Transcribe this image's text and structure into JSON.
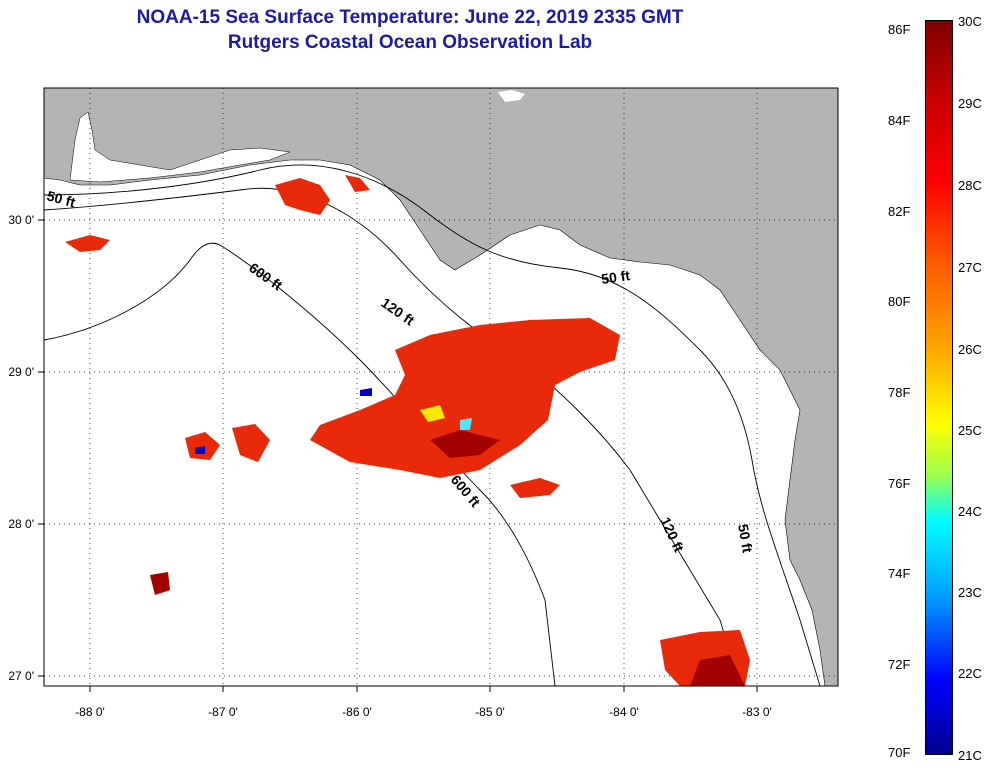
{
  "header": {
    "title": "NOAA-15 Sea Surface Temperature:  June 22, 2019 2335 GMT",
    "subtitle": "Rutgers Coastal Ocean Observation Lab"
  },
  "axes": {
    "lon_ticks": [
      "-88 0'",
      "-87 0'",
      "-86 0'",
      "-85 0'",
      "-84 0'",
      "-83 0'"
    ],
    "lat_ticks": [
      "30 0'",
      "29 0'",
      "28 0'",
      "27 0'"
    ]
  },
  "contours": {
    "labels": [
      "50 ft",
      "600 ft",
      "120 ft",
      "50 ft",
      "600 ft",
      "120 ft",
      "50 ft"
    ]
  },
  "colorbar": {
    "fahrenheit": [
      "86F",
      "84F",
      "82F",
      "80F",
      "78F",
      "76F",
      "74F",
      "72F",
      "70F"
    ],
    "celsius": [
      "30C",
      "29C",
      "28C",
      "27C",
      "26C",
      "25C",
      "24C",
      "23C",
      "22C",
      "21C"
    ]
  },
  "colors": {
    "land": "#b4b4b4",
    "title": "#1a1aa6",
    "warm": "#e82a0a",
    "hot": "#a30000"
  }
}
